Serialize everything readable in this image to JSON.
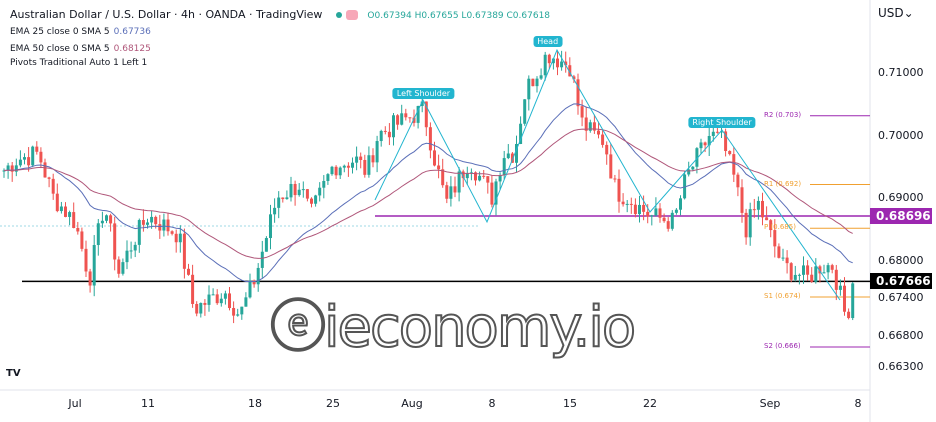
{
  "header": {
    "title": "Australian Dollar / U.S. Dollar · 4h · OANDA · TradingView",
    "ohlc": "O0.67394 H0.67655 L0.67389 C0.67618",
    "indicators": [
      {
        "label": "EMA 25 close 0 SMA 5",
        "value": "0.67736",
        "color": "#5b6fb8"
      },
      {
        "label": "EMA 50 close 0 SMA 5",
        "value": "0.68125",
        "color": "#b0577a"
      },
      {
        "label": "Pivots Traditional Auto 1 Left 1",
        "value": ""
      }
    ]
  },
  "currency": "USD",
  "watermark": "ieconomy.io",
  "chart_data": {
    "type": "candlestick",
    "title": "Australian Dollar / U.S. Dollar · 4h · OANDA · TradingView",
    "ylim": [
      0.66,
      0.7175
    ],
    "y_ticks": [
      "0.71000",
      "0.70000",
      "0.69000",
      "0.68000",
      "0.67400",
      "0.66800",
      "0.66300"
    ],
    "x_ticks": [
      "Jul",
      "11",
      "18",
      "25",
      "Aug",
      "8",
      "15",
      "22",
      "Sep",
      "8"
    ],
    "x_tick_dates": [
      "2022-07-01",
      "2022-07-11",
      "2022-07-18",
      "2022-07-25",
      "2022-08-01",
      "2022-08-08",
      "2022-08-15",
      "2022-08-22",
      "2022-09-01",
      "2022-09-08"
    ],
    "close_path": [
      [
        "2022-06-21",
        0.694
      ],
      [
        "2022-06-23",
        0.696
      ],
      [
        "2022-06-26",
        0.697
      ],
      [
        "2022-06-28",
        0.69
      ],
      [
        "2022-07-01",
        0.686
      ],
      [
        "2022-07-03",
        0.677
      ],
      [
        "2022-07-05",
        0.689
      ],
      [
        "2022-07-07",
        0.678
      ],
      [
        "2022-07-09",
        0.683
      ],
      [
        "2022-07-11",
        0.687
      ],
      [
        "2022-07-13",
        0.684
      ],
      [
        "2022-07-14",
        0.672
      ],
      [
        "2022-07-16",
        0.675
      ],
      [
        "2022-07-17",
        0.671
      ],
      [
        "2022-07-18",
        0.677
      ],
      [
        "2022-07-20",
        0.69
      ],
      [
        "2022-07-22",
        0.692
      ],
      [
        "2022-07-23",
        0.687
      ],
      [
        "2022-07-25",
        0.695
      ],
      [
        "2022-07-27",
        0.696
      ],
      [
        "2022-07-28",
        0.694
      ],
      [
        "2022-07-29",
        0.7
      ],
      [
        "2022-07-31",
        0.702
      ],
      [
        "2022-08-02",
        0.704
      ],
      [
        "2022-08-03",
        0.696
      ],
      [
        "2022-08-04",
        0.689
      ],
      [
        "2022-08-06",
        0.696
      ],
      [
        "2022-08-08",
        0.69
      ],
      [
        "2022-08-09",
        0.697
      ],
      [
        "2022-08-10",
        0.697
      ],
      [
        "2022-08-11",
        0.707
      ],
      [
        "2022-08-12",
        0.71
      ],
      [
        "2022-08-13",
        0.713
      ],
      [
        "2022-08-14",
        0.712
      ],
      [
        "2022-08-15",
        0.711
      ],
      [
        "2022-08-16",
        0.702
      ],
      [
        "2022-08-17",
        0.7
      ],
      [
        "2022-08-18",
        0.699
      ],
      [
        "2022-08-19",
        0.691
      ],
      [
        "2022-08-20",
        0.69
      ],
      [
        "2022-08-22",
        0.687
      ],
      [
        "2022-08-24",
        0.686
      ],
      [
        "2022-08-25",
        0.693
      ],
      [
        "2022-08-27",
        0.7
      ],
      [
        "2022-08-28",
        0.699
      ],
      [
        "2022-08-29",
        0.693
      ],
      [
        "2022-08-30",
        0.685
      ],
      [
        "2022-08-31",
        0.689
      ],
      [
        "2022-09-01",
        0.684
      ],
      [
        "2022-09-02",
        0.679
      ],
      [
        "2022-09-03",
        0.678
      ],
      [
        "2022-09-04",
        0.677
      ],
      [
        "2022-09-05",
        0.679
      ],
      [
        "2022-09-06",
        0.679
      ],
      [
        "2022-09-07",
        0.671
      ],
      [
        "2022-09-08",
        0.676
      ]
    ],
    "last_price": "0.67666",
    "neckline_price": "0.68696",
    "support_price": 0.67666,
    "pivots": [
      {
        "label": "R2 (0.703)",
        "value": 0.703,
        "color": "#9c27b0"
      },
      {
        "label": "R1 (0.692)",
        "value": 0.692,
        "color": "#f0a030"
      },
      {
        "label": "P (0.685)",
        "value": 0.685,
        "color": "#f0a030"
      },
      {
        "label": "S1 (0.674)",
        "value": 0.674,
        "color": "#f0a030"
      },
      {
        "label": "S2 (0.666)",
        "value": 0.666,
        "color": "#9c27b0"
      }
    ],
    "annotations": [
      {
        "label": "Left Shoulder",
        "date": "2022-08-02",
        "value": 0.7065
      },
      {
        "label": "Head",
        "date": "2022-08-13",
        "value": 0.7148
      },
      {
        "label": "Right Shoulder",
        "date": "2022-08-28",
        "value": 0.7018
      }
    ],
    "colors": {
      "up": "#26a69a",
      "down": "#ef5350",
      "ema25": "#5b6fb8",
      "ema50": "#b0577a",
      "pattern": "#22b5cf",
      "neckline": "#9c27b0"
    }
  }
}
